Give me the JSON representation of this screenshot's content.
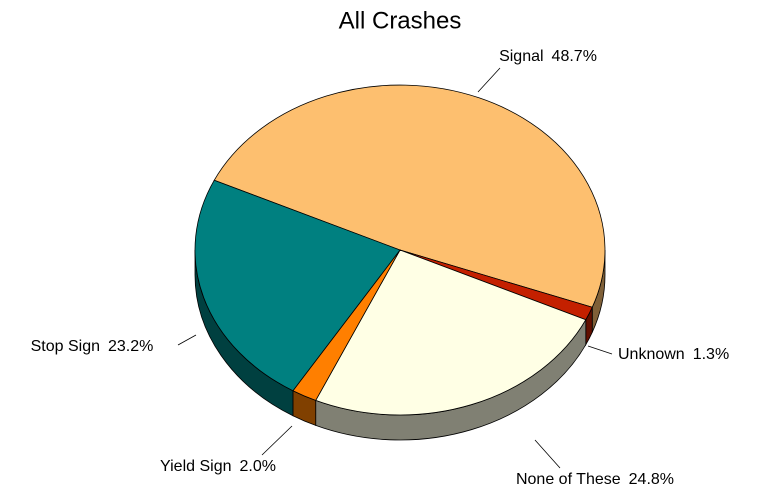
{
  "chart_data": {
    "type": "pie",
    "title": "All Crashes",
    "categories": [
      "Signal",
      "Unknown",
      "None of These",
      "Yield Sign",
      "Stop Sign"
    ],
    "values": [
      48.7,
      1.3,
      24.8,
      2.0,
      23.2
    ],
    "value_labels": [
      "48.7%",
      "1.3%",
      "24.8%",
      "2.0%",
      "23.2%"
    ],
    "colors": [
      "#fdbf6f",
      "#c42000",
      "#ffffe5",
      "#ff7f00",
      "#008080"
    ]
  }
}
